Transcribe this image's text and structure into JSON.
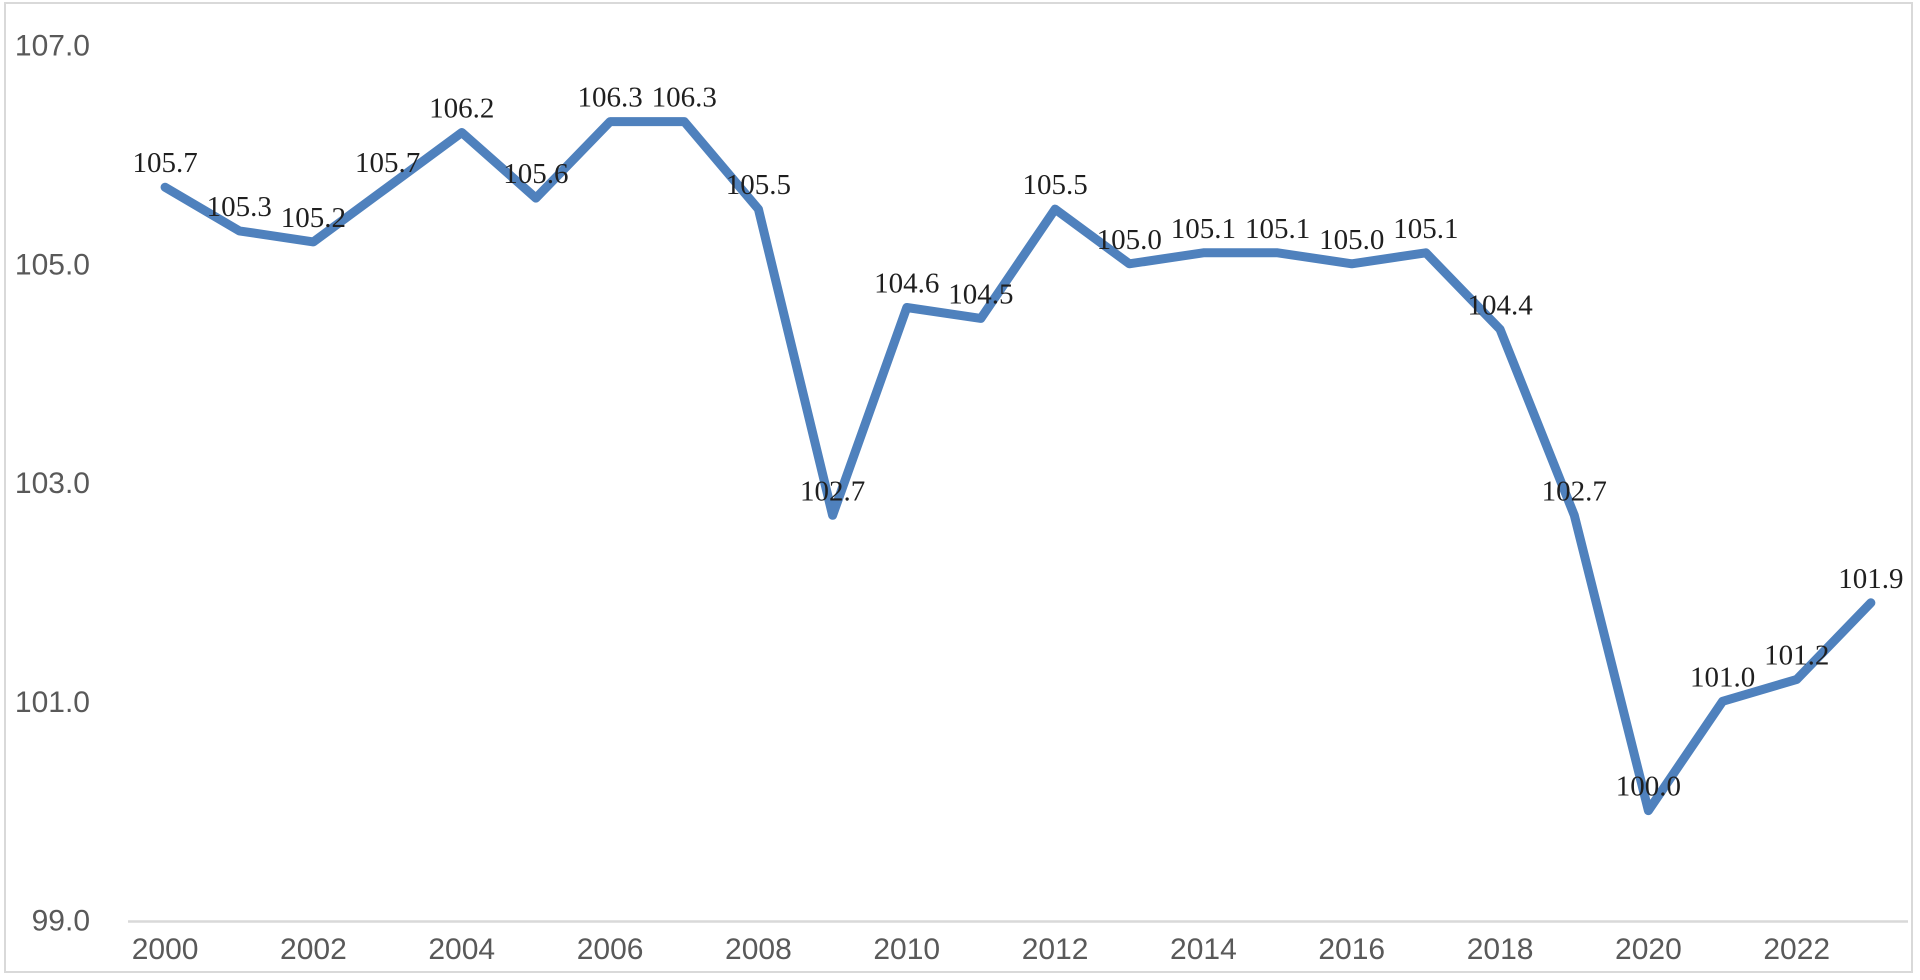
{
  "chart_data": {
    "type": "line",
    "title": "",
    "xlabel": "",
    "ylabel": "",
    "x": [
      2000,
      2001,
      2002,
      2003,
      2004,
      2005,
      2006,
      2007,
      2008,
      2009,
      2010,
      2011,
      2012,
      2013,
      2014,
      2015,
      2016,
      2017,
      2018,
      2019,
      2020,
      2021,
      2022,
      2023
    ],
    "values": [
      105.7,
      105.3,
      105.2,
      105.7,
      106.2,
      105.6,
      106.3,
      106.3,
      105.5,
      102.7,
      104.6,
      104.5,
      105.5,
      105.0,
      105.1,
      105.1,
      105.0,
      105.1,
      104.4,
      102.7,
      100.0,
      101.0,
      101.2,
      101.9
    ],
    "data_labels": [
      "105.7",
      "105.3",
      "105.2",
      "105.7",
      "106.2",
      "105.6",
      "106.3",
      "106.3",
      "105.5",
      "102.7",
      "104.6",
      "104.5",
      "105.5",
      "105.0",
      "105.1",
      "105.1",
      "105.0",
      "105.1",
      "104.4",
      "102.7",
      "100.0",
      "101.0",
      "101.2",
      "101.9"
    ],
    "y_ticks": [
      {
        "label": "107.0",
        "value": 107.0
      },
      {
        "label": "105.0",
        "value": 105.0
      },
      {
        "label": "103.0",
        "value": 103.0
      },
      {
        "label": "101.0",
        "value": 101.0
      },
      {
        "label": "99.0",
        "value": 99.0
      }
    ],
    "x_ticks": [
      {
        "label": "2000",
        "year": 2000
      },
      {
        "label": "2002",
        "year": 2002
      },
      {
        "label": "2004",
        "year": 2004
      },
      {
        "label": "2006",
        "year": 2006
      },
      {
        "label": "2008",
        "year": 2008
      },
      {
        "label": "2010",
        "year": 2010
      },
      {
        "label": "2012",
        "year": 2012
      },
      {
        "label": "2014",
        "year": 2014
      },
      {
        "label": "2016",
        "year": 2016
      },
      {
        "label": "2018",
        "year": 2018
      },
      {
        "label": "2020",
        "year": 2020
      },
      {
        "label": "2022",
        "year": 2022
      }
    ],
    "ylim": [
      99.0,
      107.0
    ],
    "grid": false,
    "legend": false,
    "line_color": "#4F81BD",
    "data_label_color": "#1F1F1F",
    "axis_text_color": "#595959",
    "axis_line_color": "#D9D9D9",
    "frame_color": "#D9D9D9",
    "background_color": "#FFFFFF"
  }
}
